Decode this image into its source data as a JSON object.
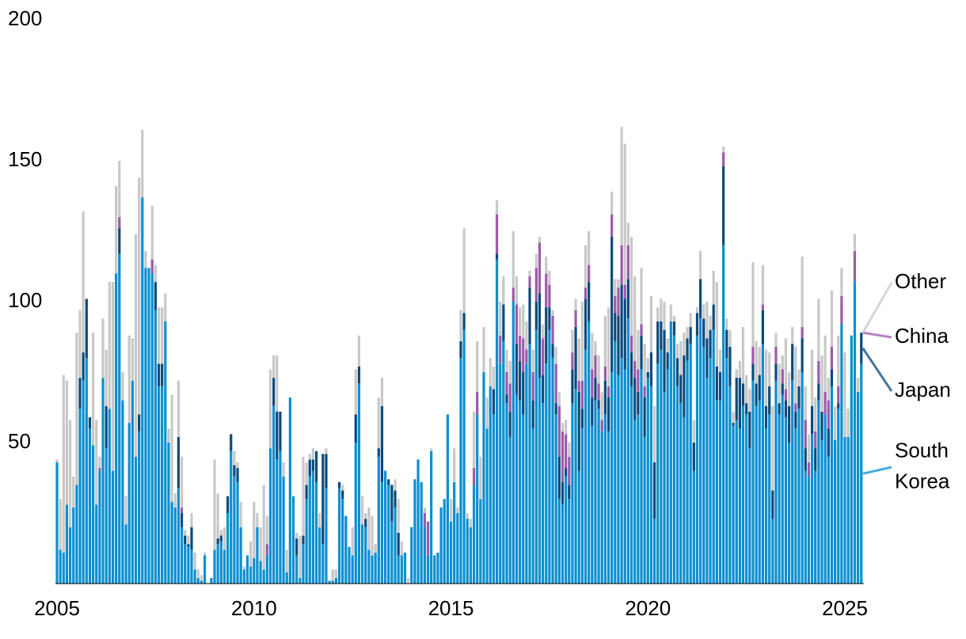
{
  "chart_data": {
    "type": "stacked_bar",
    "categories": [
      "2005",
      null,
      null,
      null,
      null,
      null,
      null,
      null,
      null,
      null,
      null,
      null,
      null,
      null,
      null,
      null,
      null,
      null,
      null,
      null,
      null,
      null,
      null,
      null,
      null,
      null,
      null,
      null,
      null,
      null,
      null,
      null,
      null,
      null,
      null,
      null,
      null,
      null,
      null,
      null,
      null,
      null,
      null,
      null,
      null,
      null,
      null,
      null,
      null,
      null,
      null,
      null,
      null,
      null,
      null,
      null,
      null,
      null,
      null,
      null,
      "2010",
      null,
      null,
      null,
      null,
      null,
      null,
      null,
      null,
      null,
      null,
      null,
      null,
      null,
      null,
      null,
      null,
      null,
      null,
      null,
      null,
      null,
      null,
      null,
      null,
      null,
      null,
      null,
      null,
      null,
      null,
      null,
      null,
      null,
      null,
      null,
      null,
      null,
      null,
      null,
      null,
      null,
      null,
      null,
      null,
      null,
      null,
      null,
      null,
      null,
      null,
      null,
      null,
      null,
      null,
      null,
      null,
      null,
      null,
      null,
      "2015",
      null,
      null,
      null,
      null,
      null,
      null,
      null,
      null,
      null,
      null,
      null,
      null,
      null,
      null,
      null,
      null,
      null,
      null,
      null,
      null,
      null,
      null,
      null,
      null,
      null,
      null,
      null,
      null,
      null,
      null,
      null,
      null,
      null,
      null,
      null,
      null,
      null,
      null,
      null,
      null,
      null,
      null,
      null,
      null,
      null,
      null,
      null,
      null,
      null,
      null,
      null,
      null,
      null,
      null,
      null,
      null,
      null,
      null,
      null,
      "2020",
      null,
      null,
      null,
      null,
      null,
      null,
      null,
      null,
      null,
      null,
      null,
      null,
      null,
      null,
      null,
      null,
      null,
      null,
      null,
      null,
      null,
      null,
      null,
      null,
      null,
      null,
      null,
      null,
      null,
      null,
      null,
      null,
      null,
      null,
      null,
      null,
      null,
      null,
      null,
      null,
      null,
      null,
      null,
      null,
      null,
      null,
      null,
      null,
      null,
      null,
      null,
      null,
      null,
      null,
      null,
      null,
      null,
      null,
      null,
      "2025",
      null,
      null,
      null,
      null,
      null
    ],
    "series": [
      {
        "name": "South Korea",
        "color": "#0b8fd0",
        "label_color": "#0b8fd0",
        "values": [
          43,
          12,
          11,
          28,
          20,
          27,
          35,
          62,
          72,
          80,
          55,
          49,
          28,
          40,
          73,
          48,
          62,
          40,
          110,
          117,
          65,
          21,
          57,
          72,
          45,
          54,
          137,
          112,
          112,
          110,
          97,
          70,
          70,
          93,
          50,
          29,
          27,
          34,
          20,
          14,
          13,
          12,
          5,
          2,
          1,
          10,
          0,
          2,
          12,
          14,
          15,
          12,
          25,
          47,
          38,
          36,
          20,
          5,
          10,
          6,
          9,
          20,
          8,
          5,
          10,
          48,
          63,
          44,
          47,
          38,
          4,
          66,
          31,
          10,
          2,
          14,
          30,
          38,
          40,
          36,
          20,
          14,
          34,
          1,
          1,
          2,
          34,
          30,
          24,
          13,
          10,
          50,
          71,
          21,
          20,
          12,
          10,
          11,
          45,
          36,
          40,
          35,
          22,
          27,
          10,
          10,
          11,
          0,
          20,
          37,
          44,
          36,
          20,
          10,
          47,
          10,
          11,
          27,
          30,
          60,
          22,
          36,
          25,
          80,
          90,
          23,
          20,
          35,
          60,
          30,
          75,
          55,
          70,
          60,
          115,
          78,
          86,
          64,
          52,
          100,
          67,
          65,
          60,
          78,
          85,
          55,
          90,
          73,
          64,
          78,
          90,
          80,
          60,
          30,
          28,
          38,
          30,
          64,
          69,
          40,
          55,
          83,
          93,
          56,
          65,
          62,
          54,
          60,
          54,
          75,
          86,
          74,
          80,
          76,
          94,
          70,
          58,
          60,
          76,
          52,
          73,
          70,
          23,
          78,
          83,
          68,
          76,
          93,
          88,
          70,
          64,
          59,
          79,
          85,
          40,
          88,
          94,
          84,
          73,
          80,
          90,
          65,
          65,
          120,
          80,
          70,
          56,
          58,
          55,
          63,
          60,
          48,
          72,
          63,
          65,
          85,
          55,
          60,
          23,
          72,
          60,
          67,
          59,
          50,
          72,
          55,
          62,
          75,
          40,
          38,
          53,
          40,
          65,
          51,
          60,
          45,
          70,
          51,
          62,
          92,
          52,
          52,
          88,
          107,
          68,
          78
        ]
      },
      {
        "name": "Japan",
        "color": "#0a4a7c",
        "label_color": "#0a4a7c",
        "values": [
          0,
          0,
          0,
          0,
          0,
          0,
          0,
          11,
          10,
          21,
          4,
          0,
          0,
          0,
          0,
          15,
          0,
          0,
          0,
          9,
          0,
          0,
          0,
          0,
          0,
          6,
          0,
          0,
          0,
          0,
          10,
          8,
          8,
          0,
          0,
          0,
          0,
          18,
          5,
          3,
          1,
          8,
          0,
          0,
          0,
          0,
          0,
          0,
          0,
          2,
          2,
          0,
          6,
          6,
          4,
          5,
          0,
          0,
          0,
          0,
          0,
          0,
          0,
          0,
          0,
          0,
          10,
          17,
          14,
          0,
          0,
          0,
          0,
          6,
          0,
          3,
          5,
          6,
          4,
          11,
          0,
          32,
          12,
          0,
          0,
          0,
          2,
          3,
          0,
          0,
          0,
          10,
          6,
          0,
          3,
          0,
          0,
          0,
          3,
          27,
          0,
          2,
          13,
          6,
          8,
          0,
          0,
          0,
          0,
          0,
          0,
          0,
          0,
          0,
          0,
          0,
          0,
          0,
          0,
          0,
          0,
          0,
          0,
          6,
          6,
          0,
          0,
          0,
          0,
          0,
          0,
          0,
          0,
          9,
          2,
          0,
          13,
          3,
          9,
          0,
          18,
          14,
          15,
          0,
          20,
          10,
          10,
          30,
          10,
          20,
          8,
          5,
          4,
          15,
          8,
          3,
          5,
          12,
          22,
          28,
          7,
          18,
          14,
          10,
          8,
          3,
          0,
          12,
          12,
          48,
          10,
          21,
          26,
          25,
          14,
          12,
          15,
          8,
          12,
          14,
          2,
          12,
          20,
          15,
          10,
          22,
          6,
          0,
          5,
          10,
          10,
          22,
          8,
          6,
          10,
          8,
          14,
          10,
          14,
          10,
          9,
          12,
          10,
          28,
          10,
          14,
          1,
          15,
          18,
          8,
          4,
          13,
          6,
          8,
          9,
          12,
          8,
          10,
          10,
          6,
          4,
          4,
          6,
          13,
          13,
          6,
          8,
          12,
          8,
          0,
          10,
          8,
          6,
          10,
          0,
          10,
          6,
          0,
          2,
          0,
          0,
          0,
          0,
          0,
          0,
          11
        ]
      },
      {
        "name": "China",
        "color": "#9b5ba8",
        "label_color": "#9b5ba8",
        "values": [
          0,
          0,
          0,
          0,
          0,
          0,
          0,
          0,
          0,
          0,
          0,
          0,
          0,
          1,
          0,
          0,
          0,
          0,
          0,
          4,
          0,
          0,
          0,
          0,
          0,
          0,
          0,
          0,
          0,
          5,
          0,
          0,
          0,
          0,
          0,
          0,
          0,
          0,
          2,
          0,
          0,
          0,
          0,
          0,
          0,
          0,
          0,
          0,
          0,
          0,
          0,
          0,
          0,
          0,
          0,
          0,
          0,
          0,
          0,
          0,
          0,
          0,
          0,
          0,
          4,
          0,
          0,
          0,
          0,
          0,
          0,
          0,
          0,
          0,
          0,
          0,
          0,
          0,
          0,
          0,
          0,
          0,
          0,
          0,
          0,
          0,
          0,
          0,
          0,
          0,
          0,
          0,
          0,
          0,
          0,
          0,
          0,
          0,
          0,
          0,
          0,
          0,
          0,
          0,
          0,
          0,
          0,
          0,
          0,
          0,
          0,
          0,
          5,
          12,
          0,
          0,
          0,
          0,
          0,
          0,
          0,
          0,
          0,
          0,
          0,
          0,
          0,
          6,
          8,
          0,
          0,
          0,
          0,
          0,
          14,
          10,
          0,
          8,
          10,
          5,
          14,
          9,
          12,
          5,
          4,
          10,
          12,
          18,
          13,
          12,
          8,
          10,
          14,
          18,
          18,
          12,
          10,
          6,
          6,
          4,
          10,
          4,
          6,
          10,
          8,
          6,
          4,
          5,
          4,
          8,
          6,
          10,
          14,
          5,
          12,
          6,
          6,
          8,
          4,
          4,
          0,
          0,
          0,
          0,
          0,
          0,
          0,
          0,
          0,
          0,
          0,
          0,
          0,
          0,
          0,
          0,
          0,
          0,
          0,
          0,
          0,
          0,
          0,
          5,
          0,
          0,
          0,
          0,
          0,
          0,
          0,
          0,
          6,
          0,
          0,
          2,
          0,
          0,
          0,
          6,
          0,
          5,
          4,
          0,
          0,
          3,
          0,
          4,
          10,
          5,
          0,
          6,
          8,
          0,
          8,
          10,
          8,
          0,
          6,
          10,
          0,
          0,
          0,
          11,
          0,
          0
        ]
      },
      {
        "name": "Other",
        "color": "#c8c8c8",
        "label_color": "#7f7f7f",
        "values": [
          1,
          18,
          63,
          44,
          38,
          11,
          54,
          24,
          50,
          0,
          0,
          40,
          30,
          4,
          21,
          20,
          45,
          67,
          31,
          20,
          10,
          10,
          31,
          15,
          79,
          84,
          24,
          6,
          0,
          19,
          6,
          20,
          20,
          10,
          5,
          38,
          5,
          20,
          18,
          2,
          3,
          5,
          6,
          3,
          2,
          1,
          0,
          0,
          32,
          16,
          2,
          8,
          0,
          0,
          5,
          2,
          9,
          1,
          0,
          9,
          20,
          5,
          12,
          30,
          10,
          28,
          8,
          20,
          0,
          5,
          8,
          0,
          0,
          2,
          15,
          28,
          8,
          2,
          4,
          0,
          5,
          0,
          2,
          0,
          4,
          3,
          0,
          2,
          0,
          0,
          10,
          16,
          11,
          10,
          2,
          15,
          14,
          3,
          18,
          10,
          0,
          0,
          0,
          4,
          12,
          5,
          0,
          2,
          0,
          0,
          0,
          0,
          2,
          0,
          1,
          0,
          0,
          0,
          0,
          0,
          8,
          12,
          2,
          11,
          30,
          2,
          3,
          20,
          18,
          15,
          16,
          11,
          10,
          8,
          5,
          12,
          10,
          8,
          8,
          20,
          10,
          10,
          12,
          10,
          2,
          8,
          5,
          2,
          5,
          6,
          5,
          2,
          6,
          5,
          3,
          5,
          5,
          8,
          4,
          15,
          28,
          15,
          12,
          13,
          5,
          10,
          10,
          18,
          28,
          8,
          6,
          3,
          42,
          50,
          8,
          35,
          30,
          14,
          20,
          15,
          5,
          20,
          20,
          5,
          8,
          10,
          5,
          6,
          2,
          5,
          12,
          8,
          4,
          5,
          8,
          2,
          10,
          5,
          13,
          5,
          12,
          30,
          8,
          2,
          4,
          6,
          4,
          3,
          6,
          20,
          10,
          8,
          30,
          15,
          10,
          14,
          20,
          12,
          30,
          5,
          14,
          5,
          18,
          12,
          6,
          20,
          6,
          25,
          12,
          10,
          20,
          12,
          22,
          20,
          20,
          8,
          20,
          12,
          18,
          10,
          30,
          10,
          0,
          6,
          5,
          0
        ]
      }
    ],
    "ylim": [
      0,
      200
    ],
    "yticks": [
      50,
      100,
      150,
      200
    ],
    "grid": false,
    "legend": "right"
  }
}
